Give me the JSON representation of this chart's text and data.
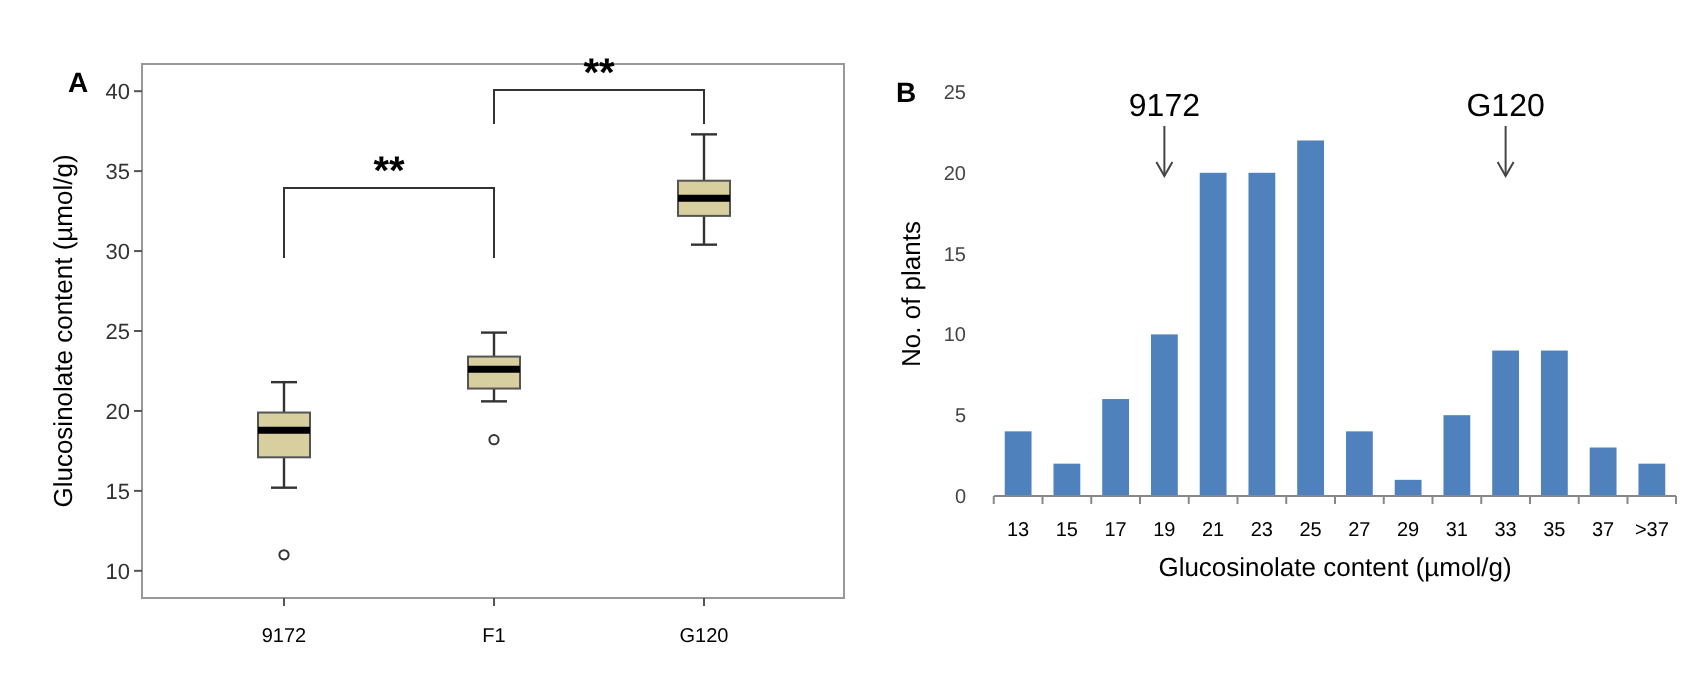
{
  "chart_data": [
    {
      "type": "box",
      "title": "A",
      "ylabel": "Glucosinolate content (µmol/g)",
      "categories": [
        "9172",
        "F1",
        "G120"
      ],
      "ylim": [
        8.3,
        41.7
      ],
      "yticks": [
        10,
        15,
        20,
        25,
        30,
        35,
        40
      ],
      "series": [
        {
          "color": "#d8cf9f",
          "boxes": [
            {
              "low": 15.2,
              "q1": 17.1,
              "median": 18.8,
              "q3": 19.9,
              "high": 21.8,
              "outliers": [
                11.0
              ]
            },
            {
              "low": 20.6,
              "q1": 21.4,
              "median": 22.6,
              "q3": 23.4,
              "high": 24.9,
              "outliers": [
                18.2
              ]
            },
            {
              "low": 30.4,
              "q1": 32.2,
              "median": 33.3,
              "q3": 34.4,
              "high": 37.3
            }
          ]
        }
      ],
      "annotations": [
        "**",
        "**"
      ]
    },
    {
      "type": "bar",
      "title": "B",
      "xlabel": "Glucosinolate content (µmol/g)",
      "ylabel": "No. of plants",
      "categories": [
        "13",
        "15",
        "17",
        "19",
        "21",
        "23",
        "25",
        "27",
        "29",
        "31",
        "33",
        "35",
        "37",
        ">37"
      ],
      "values": [
        4,
        2,
        6,
        10,
        20,
        20,
        22,
        4,
        1,
        5,
        9,
        9,
        3,
        2
      ],
      "color": "#4f81bd",
      "ylim": [
        0,
        25
      ],
      "yticks": [
        0,
        5,
        10,
        15,
        20,
        25
      ],
      "annotations": [
        "9172",
        "G120"
      ]
    }
  ]
}
